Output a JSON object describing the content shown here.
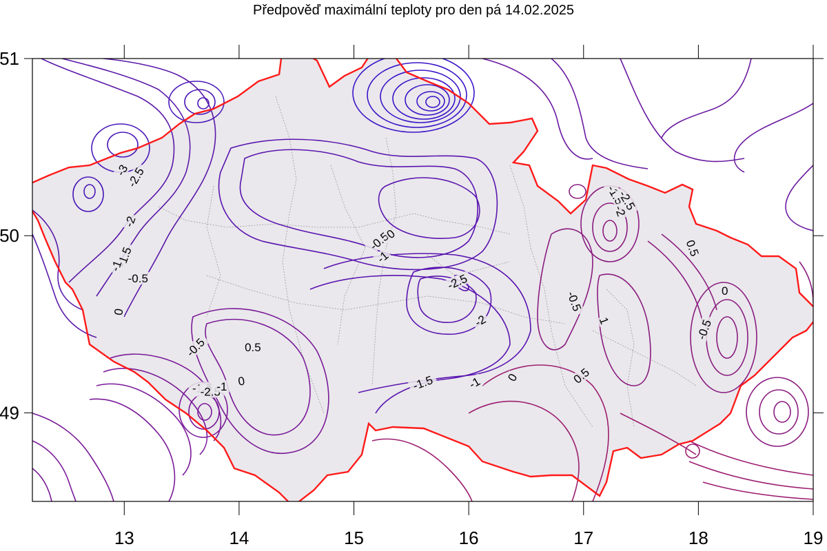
{
  "title": "Předpověď maximální teploty pro den pá 14.02.2025",
  "axes": {
    "x_ticks": [
      "13",
      "14",
      "15",
      "16",
      "17",
      "18",
      "19"
    ],
    "y_ticks": [
      "51",
      "50",
      "49"
    ],
    "x_range": [
      12.2,
      19.0
    ],
    "y_range": [
      48.5,
      51.0
    ]
  },
  "colors": {
    "contour_cold": "#3a14c8",
    "contour_mid": "#6a1aa8",
    "contour_warm": "#a0206a",
    "border": "#ff1a1a",
    "country_fill": "#eae8ec",
    "districts": "#9a9a9a"
  },
  "contour_labels": [
    {
      "text": "-3",
      "lon": 12.98,
      "lat": 50.37,
      "rot": -60
    },
    {
      "text": "-2.5",
      "lon": 13.1,
      "lat": 50.33,
      "rot": -60
    },
    {
      "text": "-2",
      "lon": 13.05,
      "lat": 50.08,
      "rot": -70
    },
    {
      "text": "-1.5",
      "lon": 13.0,
      "lat": 49.88,
      "rot": -70
    },
    {
      "text": "-1",
      "lon": 12.93,
      "lat": 49.83,
      "rot": -70
    },
    {
      "text": "-0.5",
      "lon": 13.12,
      "lat": 49.76,
      "rot": 0
    },
    {
      "text": "0",
      "lon": 12.95,
      "lat": 49.57,
      "rot": -80
    },
    {
      "text": "-0.5",
      "lon": 13.62,
      "lat": 49.37,
      "rot": -45
    },
    {
      "text": "0.5",
      "lon": 14.12,
      "lat": 49.37,
      "rot": 0
    },
    {
      "text": "-1.5",
      "lon": 13.68,
      "lat": 49.14,
      "rot": 0
    },
    {
      "text": "-2",
      "lon": 13.72,
      "lat": 49.13,
      "rot": 0
    },
    {
      "text": "-2.5",
      "lon": 13.75,
      "lat": 49.12,
      "rot": 0
    },
    {
      "text": "-1",
      "lon": 13.85,
      "lat": 49.15,
      "rot": 0
    },
    {
      "text": "0",
      "lon": 14.02,
      "lat": 49.18,
      "rot": -10
    },
    {
      "text": "-0.5",
      "lon": 15.22,
      "lat": 49.97,
      "rot": -40
    },
    {
      "text": "0",
      "lon": 15.32,
      "lat": 50.01,
      "rot": -40
    },
    {
      "text": "-1",
      "lon": 15.25,
      "lat": 49.88,
      "rot": -40
    },
    {
      "text": "-2.5",
      "lon": 15.9,
      "lat": 49.74,
      "rot": -25
    },
    {
      "text": "-2",
      "lon": 16.1,
      "lat": 49.52,
      "rot": -30
    },
    {
      "text": "-1.5",
      "lon": 15.6,
      "lat": 49.17,
      "rot": -20
    },
    {
      "text": "-1",
      "lon": 16.05,
      "lat": 49.17,
      "rot": -30
    },
    {
      "text": "0",
      "lon": 16.38,
      "lat": 49.2,
      "rot": -60
    },
    {
      "text": "0.5",
      "lon": 16.98,
      "lat": 49.21,
      "rot": -40
    },
    {
      "text": "-0.5",
      "lon": 16.92,
      "lat": 49.63,
      "rot": 70
    },
    {
      "text": "1",
      "lon": 17.18,
      "lat": 49.52,
      "rot": 70
    },
    {
      "text": "-1.5",
      "lon": 17.28,
      "lat": 50.23,
      "rot": 60
    },
    {
      "text": "-2",
      "lon": 17.32,
      "lat": 50.14,
      "rot": 70
    },
    {
      "text": "-2.5",
      "lon": 17.38,
      "lat": 50.2,
      "rot": 60
    },
    {
      "text": "0.5",
      "lon": 17.95,
      "lat": 49.93,
      "rot": 70
    },
    {
      "text": "0",
      "lon": 18.23,
      "lat": 49.69,
      "rot": 0
    },
    {
      "text": "-0.5",
      "lon": 18.05,
      "lat": 49.47,
      "rot": -70
    }
  ]
}
